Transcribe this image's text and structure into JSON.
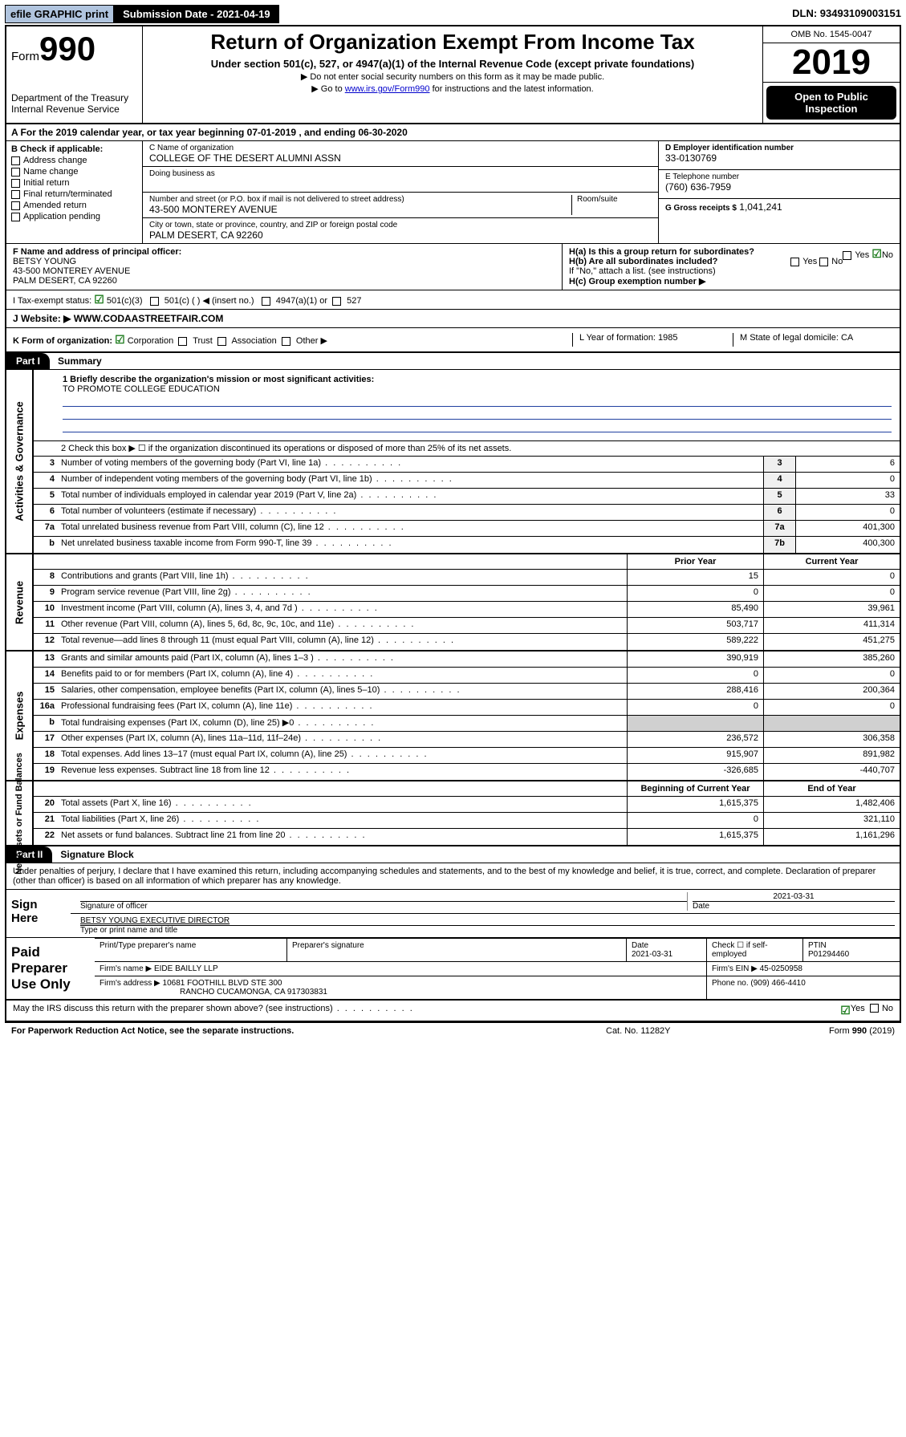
{
  "topbar": {
    "efile": "efile GRAPHIC print",
    "submission": "Submission Date - 2021-04-19",
    "dln": "DLN: 93493109003151"
  },
  "header": {
    "form_label": "Form",
    "form_num": "990",
    "dept": "Department of the Treasury",
    "irs": "Internal Revenue Service",
    "title": "Return of Organization Exempt From Income Tax",
    "sub": "Under section 501(c), 527, or 4947(a)(1) of the Internal Revenue Code (except private foundations)",
    "note1": "▶ Do not enter social security numbers on this form as it may be made public.",
    "note2_pre": "▶ Go to ",
    "note2_link": "www.irs.gov/Form990",
    "note2_post": " for instructions and the latest information.",
    "omb": "OMB No. 1545-0047",
    "year": "2019",
    "inspect": "Open to Public Inspection"
  },
  "lineA": "A For the 2019 calendar year, or tax year beginning 07-01-2019    , and ending 06-30-2020",
  "colB": {
    "hdr": "B Check if applicable:",
    "items": [
      "Address change",
      "Name change",
      "Initial return",
      "Final return/terminated",
      "Amended return",
      "Application pending"
    ]
  },
  "colC": {
    "name_lbl": "C Name of organization",
    "name": "COLLEGE OF THE DESERT ALUMNI ASSN",
    "dba_lbl": "Doing business as",
    "addr_lbl": "Number and street (or P.O. box if mail is not delivered to street address)",
    "room_lbl": "Room/suite",
    "addr": "43-500 MONTEREY AVENUE",
    "city_lbl": "City or town, state or province, country, and ZIP or foreign postal code",
    "city": "PALM DESERT, CA  92260"
  },
  "colD": {
    "ein_lbl": "D Employer identification number",
    "ein": "33-0130769",
    "tel_lbl": "E Telephone number",
    "tel": "(760) 636-7959",
    "gross_lbl": "G Gross receipts $",
    "gross": "1,041,241"
  },
  "secF": {
    "lbl": "F Name and address of principal officer:",
    "name": "BETSY YOUNG",
    "addr1": "43-500 MONTEREY AVENUE",
    "addr2": "PALM DESERT, CA  92260"
  },
  "secH": {
    "a": "H(a)  Is this a group return for subordinates?",
    "b": "H(b)  Are all subordinates included?",
    "b_note": "If \"No,\" attach a list. (see instructions)",
    "c": "H(c)  Group exemption number ▶",
    "yes": "Yes",
    "no": "No"
  },
  "rowI": {
    "lbl": "I    Tax-exempt status:",
    "c3": "501(c)(3)",
    "c": "501(c) (  ) ◀ (insert no.)",
    "a1": "4947(a)(1) or",
    "s527": "527"
  },
  "rowJ_lbl": "J   Website: ▶",
  "rowJ_val": "WWW.CODAASTREETFAIR.COM",
  "rowK": {
    "k": "K Form of organization:",
    "corp": "Corporation",
    "trust": "Trust",
    "assoc": "Association",
    "other": "Other ▶",
    "l": "L Year of formation: 1985",
    "m": "M State of legal domicile: CA"
  },
  "part1": {
    "tag": "Part I",
    "title": "Summary"
  },
  "sidebars": {
    "ag": "Activities & Governance",
    "rev": "Revenue",
    "exp": "Expenses",
    "na": "Net Assets or Fund Balances"
  },
  "mission_q": "1  Briefly describe the organization's mission or most significant activities:",
  "mission_a": "TO PROMOTE COLLEGE EDUCATION",
  "line2": "2   Check this box ▶ ☐  if the organization discontinued its operations or disposed of more than 25% of its net assets.",
  "gov_rows": [
    {
      "n": "3",
      "t": "Number of voting members of the governing body (Part VI, line 1a)",
      "b": "3",
      "v": "6"
    },
    {
      "n": "4",
      "t": "Number of independent voting members of the governing body (Part VI, line 1b)",
      "b": "4",
      "v": "0"
    },
    {
      "n": "5",
      "t": "Total number of individuals employed in calendar year 2019 (Part V, line 2a)",
      "b": "5",
      "v": "33"
    },
    {
      "n": "6",
      "t": "Total number of volunteers (estimate if necessary)",
      "b": "6",
      "v": "0"
    },
    {
      "n": "7a",
      "t": "Total unrelated business revenue from Part VIII, column (C), line 12",
      "b": "7a",
      "v": "401,300"
    },
    {
      "n": "b",
      "t": "Net unrelated business taxable income from Form 990-T, line 39",
      "b": "7b",
      "v": "400,300"
    }
  ],
  "col_hdr": {
    "prior": "Prior Year",
    "current": "Current Year"
  },
  "rev_rows": [
    {
      "n": "8",
      "t": "Contributions and grants (Part VIII, line 1h)",
      "p": "15",
      "c": "0"
    },
    {
      "n": "9",
      "t": "Program service revenue (Part VIII, line 2g)",
      "p": "0",
      "c": "0"
    },
    {
      "n": "10",
      "t": "Investment income (Part VIII, column (A), lines 3, 4, and 7d )",
      "p": "85,490",
      "c": "39,961"
    },
    {
      "n": "11",
      "t": "Other revenue (Part VIII, column (A), lines 5, 6d, 8c, 9c, 10c, and 11e)",
      "p": "503,717",
      "c": "411,314"
    },
    {
      "n": "12",
      "t": "Total revenue—add lines 8 through 11 (must equal Part VIII, column (A), line 12)",
      "p": "589,222",
      "c": "451,275"
    }
  ],
  "exp_rows": [
    {
      "n": "13",
      "t": "Grants and similar amounts paid (Part IX, column (A), lines 1–3 )",
      "p": "390,919",
      "c": "385,260"
    },
    {
      "n": "14",
      "t": "Benefits paid to or for members (Part IX, column (A), line 4)",
      "p": "0",
      "c": "0"
    },
    {
      "n": "15",
      "t": "Salaries, other compensation, employee benefits (Part IX, column (A), lines 5–10)",
      "p": "288,416",
      "c": "200,364"
    },
    {
      "n": "16a",
      "t": "Professional fundraising fees (Part IX, column (A), line 11e)",
      "p": "0",
      "c": "0"
    },
    {
      "n": "b",
      "t": "Total fundraising expenses (Part IX, column (D), line 25) ▶0",
      "p": "",
      "c": "",
      "shade": true
    },
    {
      "n": "17",
      "t": "Other expenses (Part IX, column (A), lines 11a–11d, 11f–24e)",
      "p": "236,572",
      "c": "306,358"
    },
    {
      "n": "18",
      "t": "Total expenses. Add lines 13–17 (must equal Part IX, column (A), line 25)",
      "p": "915,907",
      "c": "891,982"
    },
    {
      "n": "19",
      "t": "Revenue less expenses. Subtract line 18 from line 12",
      "p": "-326,685",
      "c": "-440,707"
    }
  ],
  "na_hdr": {
    "begin": "Beginning of Current Year",
    "end": "End of Year"
  },
  "na_rows": [
    {
      "n": "20",
      "t": "Total assets (Part X, line 16)",
      "p": "1,615,375",
      "c": "1,482,406"
    },
    {
      "n": "21",
      "t": "Total liabilities (Part X, line 26)",
      "p": "0",
      "c": "321,110"
    },
    {
      "n": "22",
      "t": "Net assets or fund balances. Subtract line 21 from line 20",
      "p": "1,615,375",
      "c": "1,161,296"
    }
  ],
  "part2": {
    "tag": "Part II",
    "title": "Signature Block"
  },
  "perjury": "Under penalties of perjury, I declare that I have examined this return, including accompanying schedules and statements, and to the best of my knowledge and belief, it is true, correct, and complete. Declaration of preparer (other than officer) is based on all information of which preparer has any knowledge.",
  "sign": {
    "left": "Sign Here",
    "date": "2021-03-31",
    "sig_lbl": "Signature of officer",
    "date_lbl": "Date",
    "name": "BETSY YOUNG  EXECUTIVE DIRECTOR",
    "name_lbl": "Type or print name and title"
  },
  "pp": {
    "left": "Paid Preparer Use Only",
    "r1": {
      "a": "Print/Type preparer's name",
      "b": "Preparer's signature",
      "c": "Date",
      "cval": "2021-03-31",
      "d": "Check ☐ if self-employed",
      "e": "PTIN",
      "eval": "P01294460"
    },
    "r2": {
      "a": "Firm's name    ▶",
      "aval": "EIDE BAILLY LLP",
      "b": "Firm's EIN ▶",
      "bval": "45-0250958"
    },
    "r3": {
      "a": "Firm's address ▶",
      "aval": "10681 FOOTHILL BLVD STE 300",
      "b": "Phone no.",
      "bval": "(909) 466-4410"
    },
    "r3b": "RANCHO CUCAMONGA, CA  917303831"
  },
  "may_irs": "May the IRS discuss this return with the preparer shown above? (see instructions)",
  "may_yes": "Yes",
  "may_no": "No",
  "foot": {
    "l": "For Paperwork Reduction Act Notice, see the separate instructions.",
    "m": "Cat. No. 11282Y",
    "r": "Form 990 (2019)"
  }
}
